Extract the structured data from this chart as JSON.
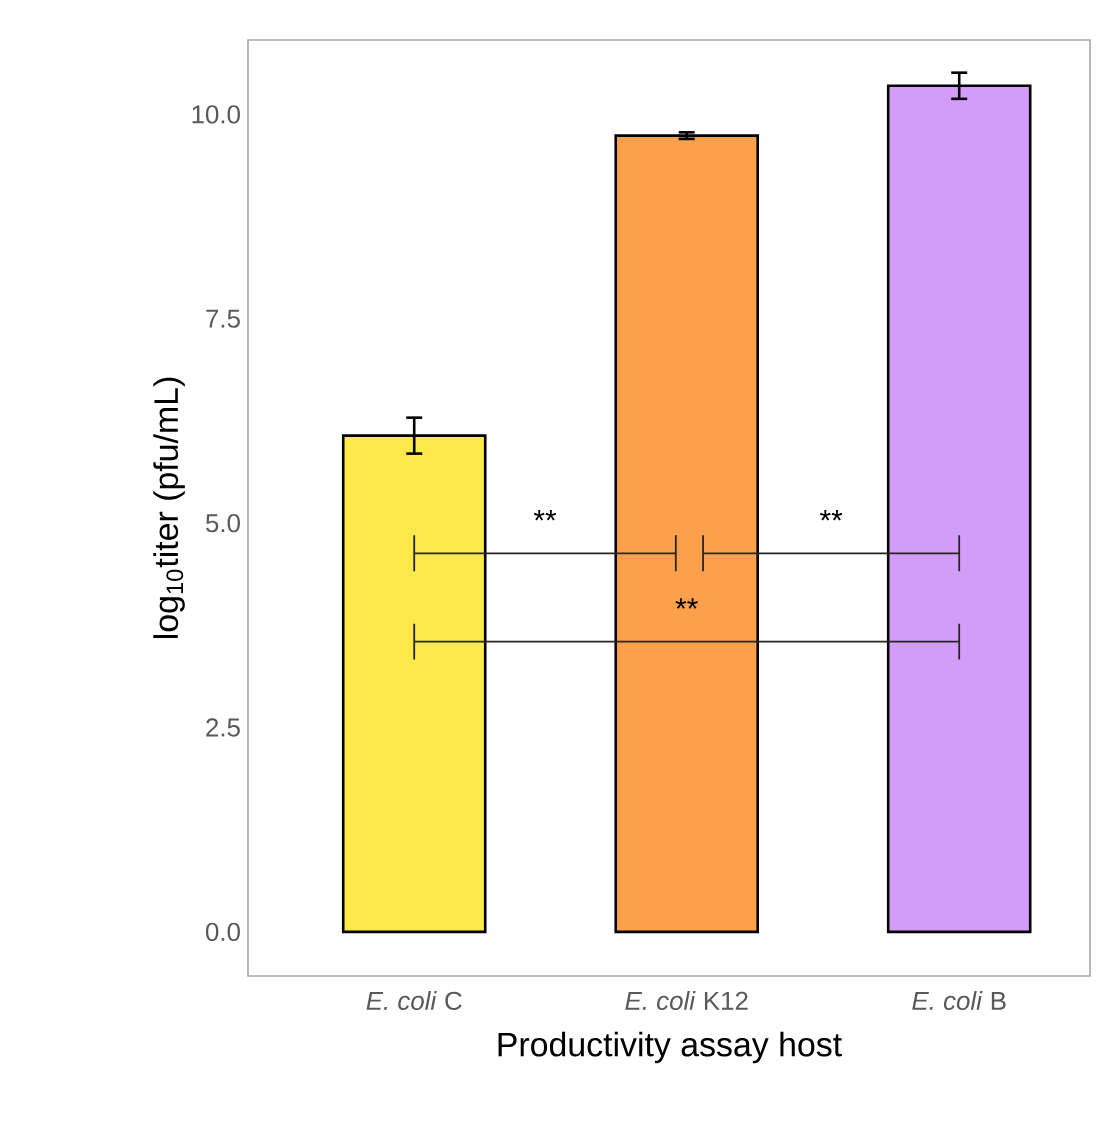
{
  "chart_data": {
    "type": "bar",
    "ylabel": "log$_{10}$titer (pfu/mL)",
    "xlabel": "Productivity assay host",
    "categories": [
      "*E. coli* C",
      "*E. coli* K12",
      "*E. coli* B"
    ],
    "values": [
      6.07,
      9.74,
      10.35
    ],
    "errors": [
      0.22,
      0.04,
      0.16
    ],
    "colors": [
      "#fbe94a",
      "#fca04c",
      "#d49cf9"
    ],
    "ylim": [
      -0.54,
      10.91
    ],
    "yticks": [
      {
        "value": 0,
        "label": "0.0"
      },
      {
        "value": 2.5,
        "label": "2.5"
      },
      {
        "value": 5,
        "label": "5.0"
      },
      {
        "value": 7.5,
        "label": "7.5"
      },
      {
        "value": 10,
        "label": "10.0"
      }
    ],
    "grid": false,
    "annotations": [
      "**",
      "**",
      "**"
    ]
  }
}
